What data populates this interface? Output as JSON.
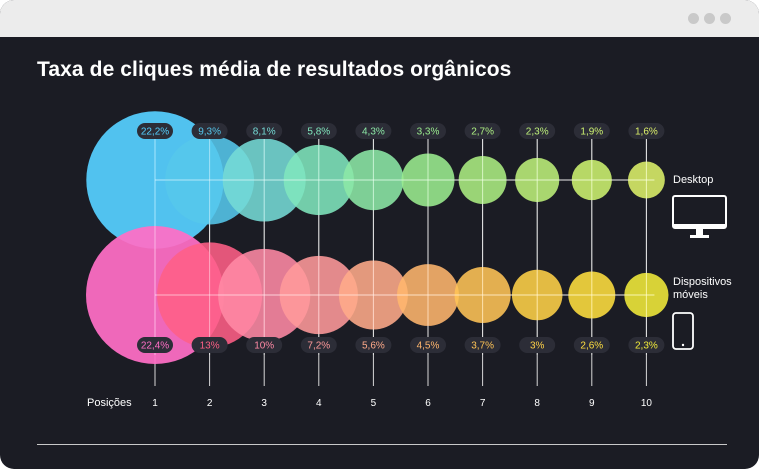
{
  "window": {
    "title": "Taxa de cliques média de resultados orgânicos",
    "controls": [
      "dot-icon",
      "dot-icon",
      "dot-icon"
    ]
  },
  "legend": {
    "desktop_label": "Desktop",
    "mobile_label": "Dispositivos móveis",
    "desktop_icon": "monitor-icon",
    "mobile_icon": "smartphone-icon"
  },
  "chart_data": {
    "type": "scatter",
    "title": "Taxa de cliques média de resultados orgânicos",
    "xlabel": "Posições",
    "ylabel": "",
    "categories": [
      "1",
      "2",
      "3",
      "4",
      "5",
      "6",
      "7",
      "8",
      "9",
      "10"
    ],
    "series": [
      {
        "name": "Desktop",
        "values": [
          22.2,
          9.3,
          8.1,
          5.8,
          4.3,
          3.3,
          2.7,
          2.3,
          1.9,
          1.6
        ],
        "labels": [
          "22,2%",
          "9,3%",
          "8,1%",
          "5,8%",
          "4,3%",
          "3,3%",
          "2,7%",
          "2,3%",
          "1,9%",
          "1,6%"
        ],
        "colors": [
          "#55cfff",
          "#55c7ec",
          "#75dbd6",
          "#80e6bd",
          "#8ce8a6",
          "#9bed8f",
          "#acee82",
          "#bdf07a",
          "#cdf270",
          "#ddf16a"
        ]
      },
      {
        "name": "Dispositivos móveis",
        "values": [
          22.4,
          13,
          10,
          7.2,
          5.6,
          4.5,
          3.7,
          3,
          2.6,
          2.3
        ],
        "labels": [
          "22,4%",
          "13%",
          "10%",
          "7,2%",
          "5,6%",
          "4,5%",
          "3,7%",
          "3%",
          "2,6%",
          "2,3%"
        ],
        "colors": [
          "#ff6ec6",
          "#ff5f86",
          "#ff8aa5",
          "#ff9a9b",
          "#ffab8a",
          "#ffb66d",
          "#ffc456",
          "#ffd248",
          "#ffdf3f",
          "#f2ec3a"
        ]
      }
    ],
    "grid": true
  }
}
